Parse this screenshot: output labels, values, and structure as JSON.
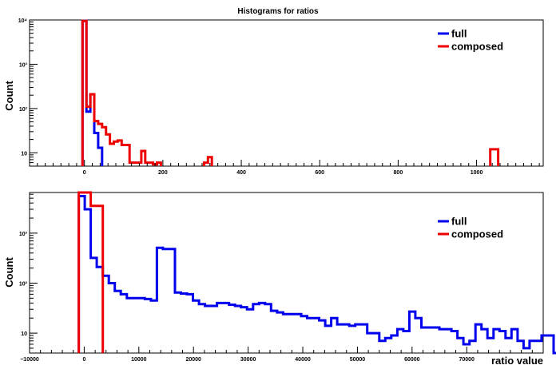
{
  "title": "Histograms for ratios",
  "colors": {
    "full": "#0000ee",
    "composed": "#ee0000"
  },
  "chart_data": [
    {
      "type": "histogram",
      "title": "Histograms for ratios",
      "ylabel": "Count",
      "xlabel": "",
      "yscale": "log",
      "xlim": [
        -140,
        1170
      ],
      "ylim": [
        5,
        10000
      ],
      "x_ticks": [
        0,
        200,
        400,
        600,
        800,
        1000
      ],
      "x_tick_labels": [
        "0",
        "200",
        "400",
        "600",
        "800",
        "1000"
      ],
      "y_ticks": [
        10,
        100,
        1000,
        10000
      ],
      "y_tick_labels": [
        "10",
        "10²",
        "10³",
        "10⁴"
      ],
      "legend_position": "top-right",
      "series": [
        {
          "name": "full",
          "color": "#0000ee",
          "bins": [
            [
              -5,
              5,
              9500
            ],
            [
              5,
              15,
              85
            ],
            [
              15,
              25,
              210
            ],
            [
              25,
              35,
              28
            ],
            [
              35,
              45,
              13
            ]
          ]
        },
        {
          "name": "composed",
          "color": "#ee0000",
          "bins": [
            [
              -5,
              5,
              9500
            ],
            [
              5,
              15,
              110
            ],
            [
              15,
              25,
              210
            ],
            [
              25,
              35,
              52
            ],
            [
              35,
              45,
              45
            ],
            [
              45,
              55,
              38
            ],
            [
              55,
              65,
              26
            ],
            [
              65,
              75,
              16
            ],
            [
              75,
              85,
              18
            ],
            [
              85,
              95,
              19
            ],
            [
              95,
              115,
              15
            ],
            [
              115,
              145,
              6
            ],
            [
              145,
              155,
              11
            ],
            [
              155,
              175,
              6
            ],
            [
              175,
              185,
              5.5
            ],
            [
              185,
              195,
              6
            ],
            [
              305,
              315,
              6
            ],
            [
              315,
              325,
              8
            ],
            [
              1035,
              1045,
              12
            ],
            [
              1045,
              1055,
              12
            ]
          ]
        }
      ]
    },
    {
      "type": "histogram",
      "ylabel": "Count",
      "xlabel": "ratio value",
      "yscale": "log",
      "xlim": [
        -10000,
        84000
      ],
      "ylim": [
        4,
        6500
      ],
      "x_ticks": [
        -10000,
        0,
        10000,
        20000,
        30000,
        40000,
        50000,
        60000,
        70000
      ],
      "x_tick_labels": [
        "−10000",
        "0",
        "10000",
        "20000",
        "30000",
        "40000",
        "50000",
        "60000",
        "70000"
      ],
      "y_ticks": [
        10,
        100,
        1000
      ],
      "y_tick_labels": [
        "10",
        "10²",
        "10³"
      ],
      "legend_position": "top-right",
      "series": [
        {
          "name": "full",
          "color": "#0000ee",
          "bin_start": -1000,
          "bin_width": 1100,
          "values": [
            5500,
            3000,
            320,
            210,
            140,
            100,
            70,
            60,
            50,
            50,
            50,
            48,
            45,
            510,
            480,
            480,
            65,
            62,
            60,
            45,
            38,
            35,
            35,
            40,
            40,
            37,
            35,
            33,
            30,
            38,
            40,
            38,
            28,
            26,
            24,
            24,
            24,
            22,
            20,
            20,
            18,
            14,
            20,
            15,
            15,
            14,
            15,
            15,
            10,
            10,
            7,
            8,
            9,
            12,
            11,
            27,
            20,
            13,
            13,
            13,
            12,
            12,
            11,
            8,
            6,
            7,
            15,
            12,
            8,
            12,
            11,
            8,
            12,
            7,
            5,
            7,
            7,
            9,
            9,
            4,
            4,
            4
          ]
        },
        {
          "name": "composed",
          "color": "#ee0000",
          "bin_start": -1000,
          "bin_width": 1100,
          "values": [
            6500,
            6500,
            3500,
            3500
          ]
        }
      ]
    }
  ]
}
